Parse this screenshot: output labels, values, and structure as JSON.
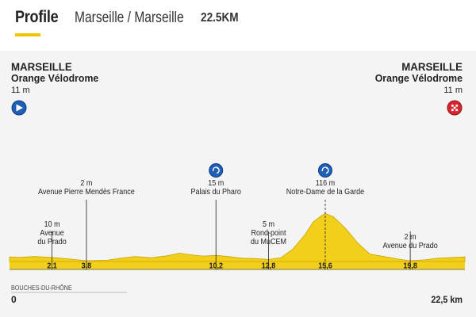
{
  "header": {
    "tab": "Profile",
    "route": "Marseille / Marseille",
    "distance": "22.5KM"
  },
  "chart_data": {
    "type": "area",
    "xlim": [
      0,
      22.5
    ],
    "ylim": [
      0,
      130
    ],
    "region_label": "BOUCHES-DU-RHÔNE",
    "x_start_label": "0",
    "x_end_label": "22,5 km",
    "start": {
      "city": "MARSEILLE",
      "place": "Orange Vélodrome",
      "alt": "11 m"
    },
    "finish": {
      "city": "MARSEILLE",
      "place": "Orange Vélodrome",
      "alt": "11 m"
    },
    "profile": [
      {
        "km": 0,
        "alt": 11
      },
      {
        "km": 0.5,
        "alt": 10
      },
      {
        "km": 1.2,
        "alt": 12
      },
      {
        "km": 2.1,
        "alt": 10
      },
      {
        "km": 3.0,
        "alt": 6
      },
      {
        "km": 3.8,
        "alt": 2
      },
      {
        "km": 4.8,
        "alt": 3
      },
      {
        "km": 5.5,
        "alt": 8
      },
      {
        "km": 6.2,
        "alt": 12
      },
      {
        "km": 7.0,
        "alt": 9
      },
      {
        "km": 7.8,
        "alt": 14
      },
      {
        "km": 8.4,
        "alt": 20
      },
      {
        "km": 9.0,
        "alt": 16
      },
      {
        "km": 9.6,
        "alt": 13
      },
      {
        "km": 10.2,
        "alt": 15
      },
      {
        "km": 10.8,
        "alt": 12
      },
      {
        "km": 11.5,
        "alt": 8
      },
      {
        "km": 12.2,
        "alt": 7
      },
      {
        "km": 12.8,
        "alt": 5
      },
      {
        "km": 13.4,
        "alt": 9
      },
      {
        "km": 14.0,
        "alt": 30
      },
      {
        "km": 14.6,
        "alt": 65
      },
      {
        "km": 15.0,
        "alt": 95
      },
      {
        "km": 15.4,
        "alt": 110
      },
      {
        "km": 15.6,
        "alt": 116
      },
      {
        "km": 16.0,
        "alt": 108
      },
      {
        "km": 16.6,
        "alt": 80
      },
      {
        "km": 17.2,
        "alt": 45
      },
      {
        "km": 17.8,
        "alt": 18
      },
      {
        "km": 18.5,
        "alt": 12
      },
      {
        "km": 19.2,
        "alt": 6
      },
      {
        "km": 19.8,
        "alt": 2
      },
      {
        "km": 20.5,
        "alt": 4
      },
      {
        "km": 21.2,
        "alt": 8
      },
      {
        "km": 22.0,
        "alt": 10
      },
      {
        "km": 22.5,
        "alt": 11
      }
    ],
    "points": [
      {
        "km": 2.1,
        "km_label": "2,1",
        "alt_label": "10 m",
        "name": "Avenue du Prado",
        "icon": false,
        "tier": 3
      },
      {
        "km": 3.8,
        "km_label": "3,8",
        "alt_label": "2 m",
        "name": "Avenue Pierre Mendès France",
        "icon": false,
        "tier": 1
      },
      {
        "km": 10.2,
        "km_label": "10,2",
        "alt_label": "15 m",
        "name": "Palais du Pharo",
        "icon": true,
        "tier": 1
      },
      {
        "km": 12.8,
        "km_label": "12,8",
        "alt_label": "5 m",
        "name": "Rond-point du MuCEM",
        "icon": false,
        "tier": 3
      },
      {
        "km": 15.6,
        "km_label": "15,6",
        "alt_label": "116 m",
        "name": "Notre-Dame de la Garde",
        "icon": true,
        "tier": 1
      },
      {
        "km": 19.8,
        "km_label": "19,8",
        "alt_label": "2 m",
        "name": "Avenue du Prado",
        "icon": false,
        "tier": 3
      }
    ],
    "colors": {
      "fill": "#f2cf1b",
      "fill_dark": "#c9a400",
      "start_icon": "#1f5fb5",
      "finish_icon": "#d7262d",
      "marker_icon": "#1f5fb5",
      "text": "#222222"
    }
  }
}
